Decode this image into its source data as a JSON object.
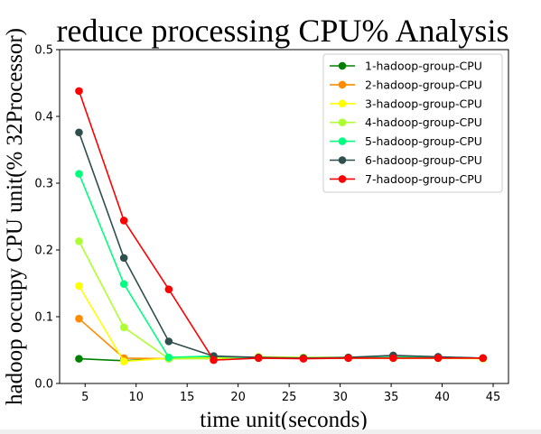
{
  "chart_data": {
    "type": "line",
    "title": "reduce processing CPU% Analysis",
    "xlabel": "time unit(seconds)",
    "ylabel": "hadoop occupy CPU unit(% 32Processor)",
    "xlim": [
      2.5,
      46.5
    ],
    "ylim": [
      0,
      0.5
    ],
    "xticks": [
      5,
      10,
      15,
      20,
      25,
      30,
      35,
      40,
      45
    ],
    "yticks": [
      0.0,
      0.1,
      0.2,
      0.3,
      0.4,
      0.5
    ],
    "ytick_labels": [
      "0.0",
      "0.1",
      "0.2",
      "0.3",
      "0.4",
      "0.5"
    ],
    "legend_position": "upper right",
    "x": [
      4.4,
      8.8,
      13.2,
      17.6,
      22.0,
      26.4,
      30.8,
      35.2,
      39.6,
      44.0
    ],
    "series": [
      {
        "name": "1-hadoop-group-CPU",
        "color": "#008000",
        "values": [
          0.037,
          0.034,
          0.038,
          0.04,
          0.039,
          0.038,
          0.038,
          0.039,
          0.039,
          0.038
        ]
      },
      {
        "name": "2-hadoop-group-CPU",
        "color": "#ff8c00",
        "values": [
          0.097,
          0.038,
          0.037,
          0.038,
          0.038,
          0.038,
          0.038,
          0.038,
          0.038,
          0.038
        ]
      },
      {
        "name": "3-hadoop-group-CPU",
        "color": "#ffff00",
        "values": [
          0.146,
          0.033,
          0.038,
          0.038,
          0.04,
          0.039,
          0.038,
          0.038,
          0.038,
          0.037
        ]
      },
      {
        "name": "4-hadoop-group-CPU",
        "color": "#adff2f",
        "values": [
          0.213,
          0.084,
          0.037,
          0.037,
          0.039,
          0.039,
          0.039,
          0.038,
          0.038,
          0.038
        ]
      },
      {
        "name": "5-hadoop-group-CPU",
        "color": "#00ff7f",
        "values": [
          0.314,
          0.149,
          0.039,
          0.041,
          0.038,
          0.038,
          0.038,
          0.039,
          0.039,
          0.038
        ]
      },
      {
        "name": "6-hadoop-group-CPU",
        "color": "#2f4f4f",
        "values": [
          0.376,
          0.188,
          0.063,
          0.041,
          0.039,
          0.038,
          0.039,
          0.042,
          0.04,
          0.038
        ]
      },
      {
        "name": "7-hadoop-group-CPU",
        "color": "#ff0000",
        "values": [
          0.438,
          0.244,
          0.141,
          0.035,
          0.038,
          0.037,
          0.038,
          0.038,
          0.038,
          0.038
        ]
      }
    ]
  }
}
